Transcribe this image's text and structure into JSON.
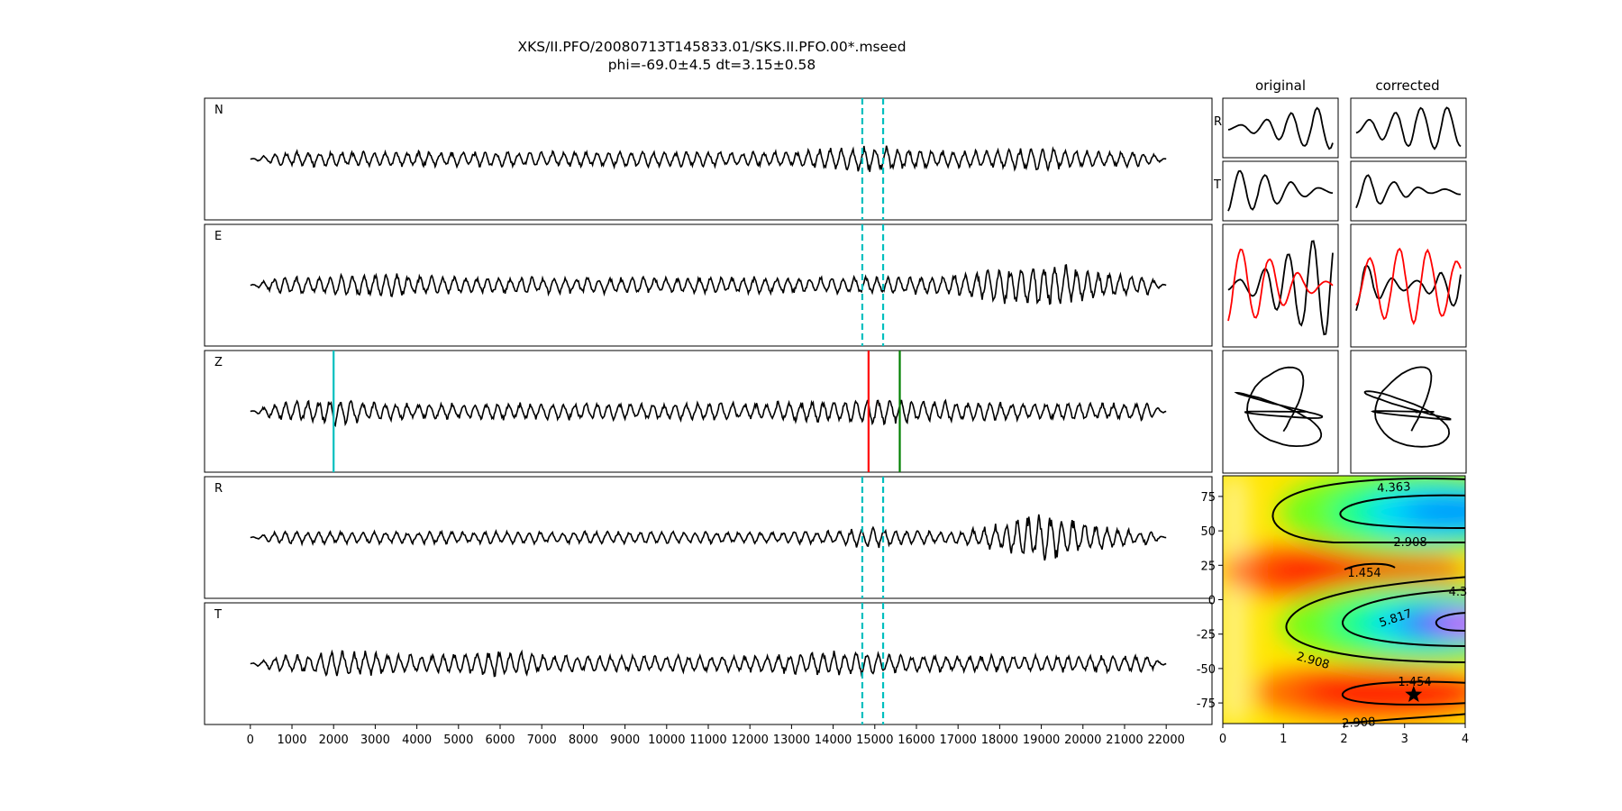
{
  "title": {
    "line1": "XKS/II.PFO/20080713T145833.01/SKS.II.PFO.00*.mseed",
    "line2": "phi=-69.0±4.5 dt=3.15±0.58"
  },
  "chart_data": [
    {
      "type": "line",
      "name": "three-component and rotated seismograms",
      "panels": [
        "N",
        "E",
        "Z",
        "R",
        "T"
      ],
      "x_ticks": [
        0,
        1000,
        2000,
        3000,
        4000,
        5000,
        6000,
        7000,
        8000,
        9000,
        10000,
        11000,
        12000,
        13000,
        14000,
        15000,
        16000,
        17000,
        18000,
        19000,
        20000,
        21000,
        22000
      ],
      "xlim": [
        -1100,
        23100
      ],
      "trace_x_range": [
        0,
        22000
      ],
      "window_lines": {
        "start": 14700,
        "end": 15200,
        "color": "#00bfbf"
      },
      "phase_markers": [
        {
          "x": 2000,
          "color": "#00bfbf"
        },
        {
          "x": 14850,
          "color": "#ff0000"
        },
        {
          "x": 15600,
          "color": "#008000"
        }
      ],
      "trace_color": "#000000"
    },
    {
      "type": "line",
      "name": "particle motion panels",
      "column_titles": [
        "original",
        "corrected"
      ],
      "row_labels": [
        "R",
        "T"
      ],
      "overlay_color": "#ff0000"
    },
    {
      "type": "heatmap",
      "name": "splitting error surface",
      "xlim": [
        0,
        4
      ],
      "ylim": [
        -90,
        90
      ],
      "x_ticks": [
        0,
        1,
        2,
        3,
        4
      ],
      "y_ticks": [
        75,
        50,
        25,
        0,
        -25,
        -50,
        -75
      ],
      "contour_labels": [
        "4.363",
        "2.908",
        "1.454",
        "4.3",
        "5.817",
        "2.908",
        "1.454",
        "2.908"
      ],
      "best_fit": {
        "dt": 3.15,
        "phi": -69.0
      },
      "colormap": "gist_rainbow"
    }
  ]
}
